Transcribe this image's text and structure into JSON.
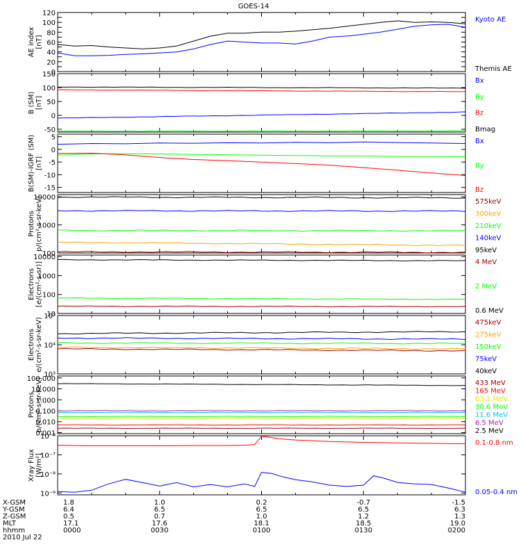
{
  "title": "GOES-14",
  "date": "2010 Jul 22",
  "footer": {
    "rows": [
      {
        "name": "X-GSM",
        "values": [
          "1.8",
          "1.0",
          "0.2",
          "-0.7",
          "-1.5"
        ]
      },
      {
        "name": "Y-GSM",
        "values": [
          "6.4",
          "6.5",
          "6.5",
          "6.5",
          "6.3"
        ]
      },
      {
        "name": "Z-GSM",
        "values": [
          "0.5",
          "0.7",
          "1.0",
          "1.2",
          "1.3"
        ]
      },
      {
        "name": "MLT",
        "values": [
          "17.1",
          "17.6",
          "18.1",
          "18.5",
          "19.0"
        ]
      },
      {
        "name": "hhmm",
        "values": [
          "0000",
          "0030",
          "0100",
          "0130",
          "0200"
        ]
      }
    ]
  },
  "colors": {
    "black": "#000000",
    "blue": "#0000ff",
    "green": "#00ff00",
    "red": "#ff0000",
    "darkred": "#a00000",
    "orange": "#ffa500",
    "yellow": "#e6e600",
    "cyan": "#00bfff",
    "purple": "#a020a0"
  },
  "chart_data": [
    {
      "id": "ae",
      "type": "line",
      "ylabel": [
        "AE index",
        "[nT]"
      ],
      "ylim": [
        0,
        120
      ],
      "scale": "linear",
      "yticks": [
        0,
        10,
        20,
        30,
        40,
        50,
        60,
        70,
        80,
        90,
        100,
        110,
        120
      ],
      "ytick_labels": [
        "0",
        "",
        "20",
        "",
        "40",
        "",
        "60",
        "",
        "80",
        "",
        "100",
        "",
        "120"
      ],
      "series": [
        {
          "name": "Kyoto AE",
          "color": "blue",
          "x": [
            0,
            5,
            10,
            15,
            20,
            25,
            30,
            35,
            40,
            45,
            50,
            55,
            60,
            65,
            70,
            75,
            80,
            85,
            90,
            95,
            100,
            105,
            110,
            115,
            120
          ],
          "y": [
            38,
            32,
            32,
            33,
            35,
            36,
            38,
            40,
            46,
            55,
            62,
            60,
            58,
            58,
            56,
            62,
            70,
            72,
            76,
            80,
            86,
            92,
            95,
            96,
            90
          ]
        },
        {
          "name": "Themis AE",
          "color": "black",
          "x": [
            0,
            5,
            10,
            15,
            20,
            25,
            30,
            35,
            40,
            45,
            50,
            55,
            60,
            65,
            70,
            75,
            80,
            85,
            90,
            95,
            100,
            105,
            110,
            115,
            120
          ],
          "y": [
            55,
            52,
            53,
            50,
            48,
            46,
            48,
            52,
            62,
            72,
            78,
            78,
            80,
            80,
            82,
            85,
            88,
            92,
            96,
            100,
            103,
            100,
            101,
            100,
            97
          ]
        }
      ]
    },
    {
      "id": "b",
      "type": "line",
      "ylabel": [
        "B (SM)",
        "[nT]"
      ],
      "ylim": [
        -60,
        150
      ],
      "scale": "linear",
      "yticks": [
        -50,
        0,
        50,
        100,
        150
      ],
      "ytick_labels": [
        "-50",
        "0",
        "50",
        "100",
        "150"
      ],
      "series": [
        {
          "name": "Bx",
          "color": "blue",
          "x": [
            0,
            120
          ],
          "y": [
            -10,
            12
          ]
        },
        {
          "name": "By",
          "color": "green",
          "x": [
            0,
            120
          ],
          "y": [
            -57,
            -56
          ]
        },
        {
          "name": "Bz",
          "color": "red",
          "x": [
            0,
            120
          ],
          "y": [
            92,
            85
          ]
        },
        {
          "name": "Bmag",
          "color": "black",
          "x": [
            0,
            120
          ],
          "y": [
            102,
            98
          ]
        }
      ]
    },
    {
      "id": "digrf",
      "type": "line",
      "ylabel": [
        "B(SM)-IGRF (SM)",
        "[nT]"
      ],
      "ylim": [
        -17,
        6
      ],
      "scale": "linear",
      "yticks": [
        -15,
        -10,
        -5,
        0,
        5
      ],
      "ytick_labels": [
        "-15",
        "-10",
        "-5",
        "0",
        "5"
      ],
      "series": [
        {
          "name": "Bx",
          "color": "blue",
          "x": [
            0,
            10,
            20,
            30,
            40,
            50,
            60,
            70,
            80,
            90,
            100,
            110,
            120
          ],
          "y": [
            2,
            2.3,
            2.2,
            2.5,
            2.4,
            2.6,
            2.5,
            2.8,
            2.6,
            2.9,
            2.7,
            2.5,
            2.3
          ]
        },
        {
          "name": "By",
          "color": "green",
          "x": [
            0,
            10,
            20,
            30,
            40,
            50,
            60,
            70,
            80,
            90,
            100,
            110,
            120
          ],
          "y": [
            -2.3,
            -1.8,
            -1.7,
            -1.8,
            -2,
            -2.1,
            -2.3,
            -2.4,
            -2.6,
            -2.6,
            -2.8,
            -2.8,
            -2.9
          ]
        },
        {
          "name": "Bz",
          "color": "red",
          "x": [
            0,
            10,
            20,
            30,
            40,
            50,
            60,
            70,
            80,
            90,
            100,
            110,
            120
          ],
          "y": [
            -1.6,
            -1.5,
            -2.2,
            -3.2,
            -4,
            -4.5,
            -5,
            -5.6,
            -6.2,
            -7.2,
            -8.2,
            -9.3,
            -10.3
          ]
        }
      ]
    },
    {
      "id": "protons1",
      "type": "line",
      "ylabel": [
        "Protons",
        "p/(cm²-s-sr-keV)"
      ],
      "ylim": [
        100,
        12000
      ],
      "scale": "log",
      "yticks": [
        100,
        1000,
        10000
      ],
      "ytick_labels": [
        "100",
        "1000",
        "10000"
      ],
      "series": [
        {
          "name": "575keV",
          "color": "darkred",
          "x": [
            0,
            120
          ],
          "y": [
            110,
            105
          ]
        },
        {
          "name": "300keV",
          "color": "orange",
          "x": [
            0,
            120
          ],
          "y": [
            240,
            185
          ]
        },
        {
          "name": "210keV",
          "color": "green",
          "x": [
            0,
            120
          ],
          "y": [
            640,
            620
          ]
        },
        {
          "name": "140keV",
          "color": "blue",
          "x": [
            0,
            120
          ],
          "y": [
            3200,
            3100
          ]
        },
        {
          "name": "95keV",
          "color": "black",
          "x": [
            0,
            120
          ],
          "y": [
            9800,
            9200
          ]
        }
      ]
    },
    {
      "id": "electrons1",
      "type": "line",
      "ylabel": [
        "Electrons",
        "[e/(cm²-s-sr)]"
      ],
      "ylim": [
        10,
        12000
      ],
      "scale": "log",
      "yticks": [
        10,
        100,
        1000,
        10000
      ],
      "ytick_labels": [
        "10",
        "100",
        "1000",
        "10000"
      ],
      "series": [
        {
          "name": "4 MeV",
          "color": "darkred",
          "x": [
            0,
            120
          ],
          "y": [
            24,
            23
          ]
        },
        {
          "name": "2 MeV",
          "color": "green",
          "x": [
            0,
            120
          ],
          "y": [
            65,
            55
          ]
        },
        {
          "name": "0.6 MeV",
          "color": "black",
          "x": [
            0,
            120
          ],
          "y": [
            6800,
            6000
          ]
        }
      ]
    },
    {
      "id": "electrons2",
      "type": "line",
      "ylabel": [
        "Electrons",
        "e/(cm²-s-sr-keV)"
      ],
      "ylim": [
        1000,
        100000
      ],
      "scale": "log",
      "yticks": [
        1000,
        10000,
        100000
      ],
      "ytick_labels": [
        "10³",
        "10⁴",
        "10⁵"
      ],
      "series": [
        {
          "name": "475keV",
          "color": "darkred",
          "x": [
            0,
            120
          ],
          "y": [
            7200,
            6200
          ]
        },
        {
          "name": "275keV",
          "color": "orange",
          "x": [
            0,
            120
          ],
          "y": [
            8200,
            7200
          ]
        },
        {
          "name": "150keV",
          "color": "green",
          "x": [
            0,
            120
          ],
          "y": [
            11500,
            11000
          ]
        },
        {
          "name": "75keV",
          "color": "blue",
          "x": [
            0,
            120
          ],
          "y": [
            17000,
            15500
          ]
        },
        {
          "name": "40keV",
          "color": "black",
          "x": [
            0,
            120
          ],
          "y": [
            24000,
            28000
          ]
        }
      ]
    },
    {
      "id": "protons2",
      "type": "line",
      "ylabel": [
        "Protons",
        "p/(cm²-s-sr-keV)"
      ],
      "ylim": [
        0.0008,
        150
      ],
      "scale": "log",
      "yticks": [
        0.001,
        0.01,
        0.1,
        1,
        10,
        100
      ],
      "ytick_labels": [
        "0.001",
        "0.010",
        "0.100",
        "1.000",
        "10.000",
        "100.000"
      ],
      "series": [
        {
          "name": "433 MeV",
          "color": "darkred",
          "x": [
            0,
            120
          ],
          "y": [
            0.0025,
            0.0025
          ]
        },
        {
          "name": "165 MeV",
          "color": "red",
          "x": [
            0,
            120
          ],
          "y": [
            0.005,
            0.005
          ]
        },
        {
          "name": "63.1 MeV",
          "color": "yellow",
          "x": [
            0,
            120
          ],
          "y": [
            0.02,
            0.02
          ]
        },
        {
          "name": "30.6 MeV",
          "color": "green",
          "x": [
            0,
            120
          ],
          "y": [
            0.03,
            0.03
          ]
        },
        {
          "name": "11.6 MeV",
          "color": "cyan",
          "x": [
            0,
            120
          ],
          "y": [
            0.07,
            0.07
          ]
        },
        {
          "name": "6.5 MeV",
          "color": "purple",
          "x": [
            0,
            120
          ],
          "y": [
            0.1,
            0.1
          ]
        },
        {
          "name": "2.5 MeV",
          "color": "black",
          "x": [
            0,
            120
          ],
          "y": [
            30,
            20
          ]
        }
      ]
    },
    {
      "id": "xray",
      "type": "line",
      "ylabel": [
        "Xray Flux",
        "[W/m²]"
      ],
      "ylim": [
        8e-10,
        1e-06
      ],
      "scale": "log",
      "yticks": [
        1e-09,
        1e-08,
        1e-07,
        1e-06
      ],
      "ytick_labels": [
        "10⁻⁹",
        "10⁻⁸",
        "10⁻⁷",
        "10⁻⁶"
      ],
      "series": [
        {
          "name": "0.1-0.8 nm",
          "color": "red",
          "x": [
            0,
            10,
            20,
            30,
            40,
            50,
            55,
            58,
            60,
            62,
            65,
            70,
            80,
            90,
            100,
            110,
            120
          ],
          "y": [
            3.2e-07,
            3e-07,
            3e-07,
            3e-07,
            3.1e-07,
            3.1e-07,
            3.2e-07,
            3.5e-07,
            9.5e-07,
            8.5e-07,
            7e-07,
            6e-07,
            5e-07,
            4.5e-07,
            4.2e-07,
            4e-07,
            3.8e-07
          ]
        },
        {
          "name": "0.05-0.4 nm",
          "color": "blue",
          "x": [
            0,
            5,
            10,
            15,
            20,
            25,
            30,
            35,
            40,
            45,
            50,
            55,
            58,
            60,
            63,
            66,
            70,
            75,
            80,
            85,
            90,
            93,
            96,
            100,
            105,
            110,
            115,
            120
          ],
          "y": [
            1.2e-09,
            1.1e-09,
            1.4e-09,
            3e-09,
            5.2e-09,
            3.5e-09,
            2.3e-09,
            3.5e-09,
            2.1e-09,
            2.8e-09,
            2.1e-09,
            3e-09,
            2.2e-09,
            1.2e-08,
            1.05e-08,
            7.2e-09,
            5e-09,
            3.8e-09,
            2.6e-09,
            2.2e-09,
            2.6e-09,
            8e-09,
            6e-09,
            3.6e-09,
            3e-09,
            2.8e-09,
            1.8e-09,
            1.1e-09
          ]
        }
      ]
    }
  ]
}
